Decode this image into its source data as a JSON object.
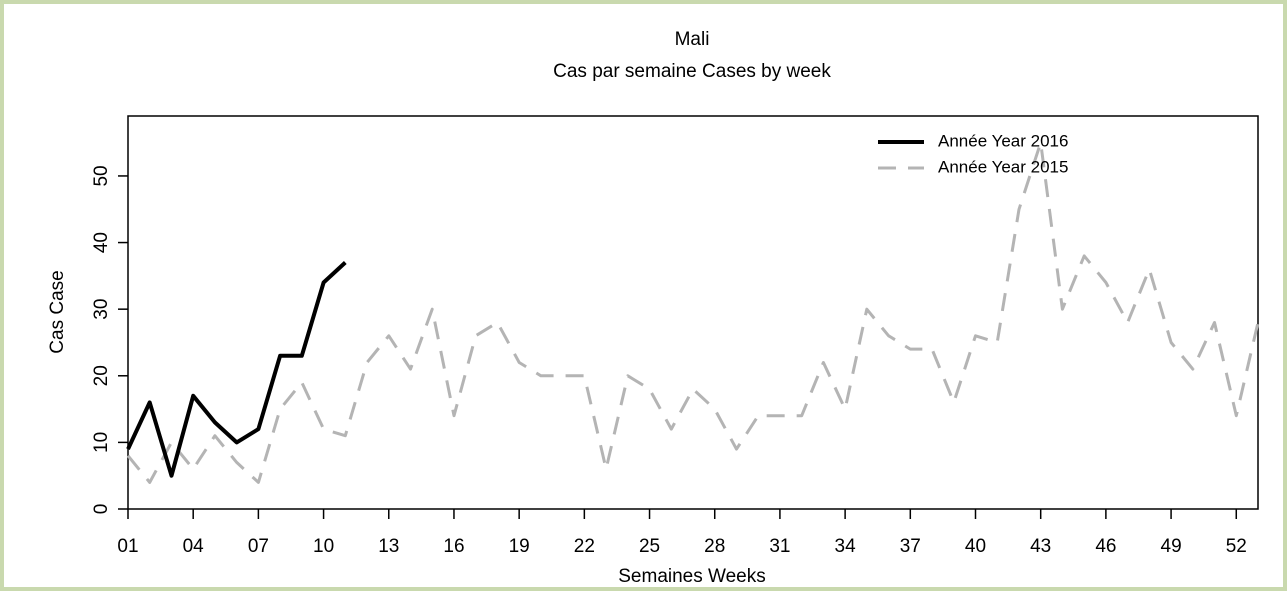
{
  "chart_data": {
    "type": "line",
    "title": "Mali",
    "subtitle": "Cas par semaine Cases by week",
    "x_label": "Semaines Weeks",
    "y_label": "Cas Case",
    "legend": "topright",
    "series": [
      {
        "name": "Année Year 2016",
        "color": "#000000",
        "dash": false,
        "x": [
          1,
          2,
          3,
          4,
          5,
          6,
          7,
          8,
          9,
          10,
          11
        ],
        "values": [
          9,
          16,
          5,
          17,
          13,
          10,
          12,
          23,
          23,
          34,
          37
        ]
      },
      {
        "name": "Année Year 2015",
        "color": "#b4b4b4",
        "dash": true,
        "x": [
          1,
          2,
          3,
          4,
          5,
          6,
          7,
          8,
          9,
          10,
          11,
          12,
          13,
          14,
          15,
          16,
          17,
          18,
          19,
          20,
          21,
          22,
          23,
          24,
          25,
          26,
          27,
          28,
          29,
          30,
          31,
          32,
          33,
          34,
          35,
          36,
          37,
          38,
          39,
          40,
          41,
          42,
          43,
          44,
          45,
          46,
          47,
          48,
          49,
          50,
          51,
          52,
          53
        ],
        "values": [
          8,
          4,
          10,
          6,
          11,
          7,
          4,
          15,
          19,
          12,
          11,
          22,
          26,
          21,
          30,
          14,
          26,
          28,
          22,
          20,
          20,
          20,
          6,
          20,
          18,
          12,
          18,
          15,
          9,
          14,
          14,
          14,
          22,
          15,
          30,
          26,
          24,
          24,
          16,
          26,
          25,
          45,
          55,
          30,
          38,
          34,
          28,
          36,
          25,
          21,
          28,
          14,
          28
        ]
      }
    ],
    "xlim": [
      1,
      53
    ],
    "ylim": [
      0,
      59
    ],
    "xticks": [
      {
        "value": 1,
        "label": "01"
      },
      {
        "value": 4,
        "label": "04"
      },
      {
        "value": 7,
        "label": "07"
      },
      10,
      13,
      16,
      19,
      22,
      25,
      28,
      31,
      34,
      37,
      40,
      43,
      46,
      49,
      52
    ],
    "yticks": [
      0,
      10,
      20,
      30,
      40,
      50
    ]
  }
}
